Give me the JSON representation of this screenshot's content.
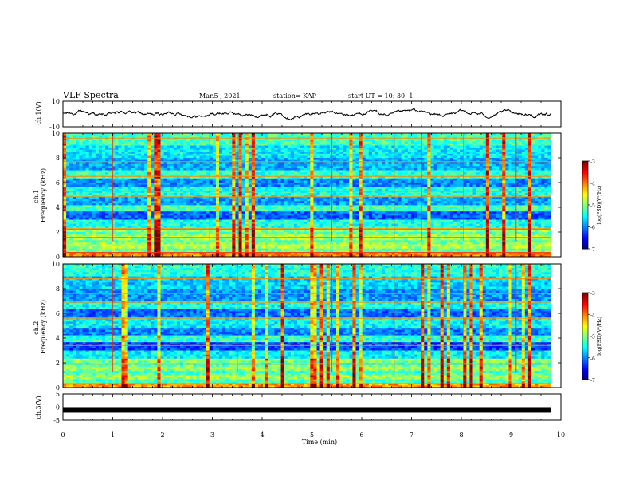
{
  "header": {
    "title": "VLF Spectra",
    "date": "Mar.5  , 2021",
    "station": "station= KAP",
    "start": "start  UT  =   10: 30: 1"
  },
  "chart_data": [
    {
      "type": "line",
      "panel": "ch1-waveform",
      "ylabel": "ch.1(V)",
      "ylim": [
        -10,
        10
      ],
      "yticks": [
        "10",
        "-10"
      ],
      "xlim": [
        0,
        10
      ],
      "data_end_min": 9.8,
      "approx_level": 0,
      "amplitude": 4
    },
    {
      "type": "heatmap",
      "panel": "ch1-spectrogram",
      "ylabel": "ch.1\nFrequency (kHz)",
      "ylim": [
        0,
        10
      ],
      "yticks": [
        "0",
        "2",
        "4",
        "6",
        "8",
        "10"
      ],
      "xlim": [
        0,
        10
      ],
      "data_end_min": 9.8,
      "color_scale": {
        "label": "log(PSD)(V²/Hz)",
        "range": [
          -7,
          -3
        ],
        "ticks": [
          "-3",
          "-4",
          "-5",
          "-6",
          "-7"
        ]
      }
    },
    {
      "type": "heatmap",
      "panel": "ch2-spectrogram",
      "ylabel": "ch.2\nFrequency (kHz)",
      "ylim": [
        0,
        10
      ],
      "yticks": [
        "0",
        "2",
        "4",
        "6",
        "8",
        "10"
      ],
      "xlim": [
        0,
        10
      ],
      "data_end_min": 9.8,
      "color_scale": {
        "label": "log(PSD)(V²/Hz)",
        "range": [
          -7,
          -3
        ],
        "ticks": [
          "-3",
          "-4",
          "-5",
          "-6",
          "-7"
        ]
      }
    },
    {
      "type": "line",
      "panel": "ch3-waveform",
      "ylabel": "ch.3(V)",
      "ylim": [
        -5,
        5
      ],
      "yticks": [
        "5",
        "0",
        "-5"
      ],
      "xlim": [
        0,
        10
      ],
      "data_end_min": 9.8,
      "approx_level": -1.2
    }
  ],
  "xaxis": {
    "label": "Time  (min)",
    "ticks": [
      "0",
      "1",
      "2",
      "3",
      "4",
      "5",
      "6",
      "7",
      "8",
      "9",
      "10"
    ]
  }
}
